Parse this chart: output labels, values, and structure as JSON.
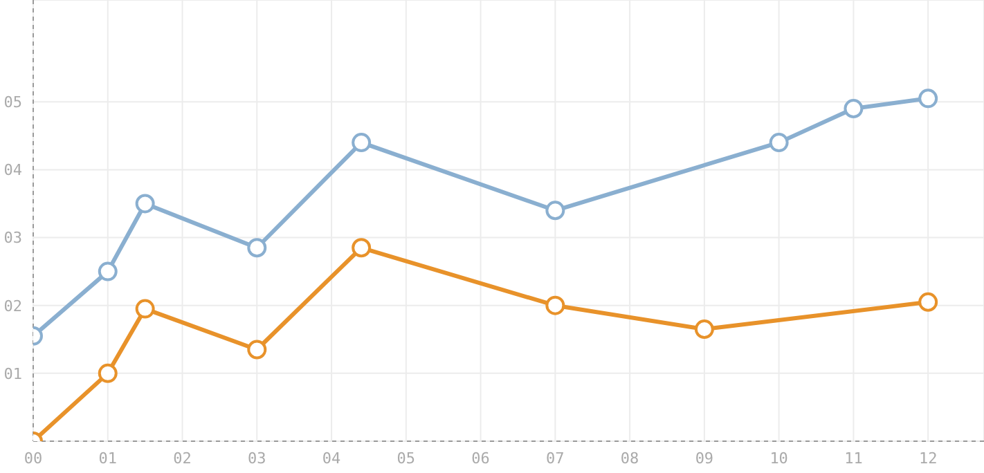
{
  "chart_data": {
    "type": "line",
    "xlim": [
      0,
      12.75
    ],
    "xticks": [
      {
        "value": 0,
        "label": "00"
      },
      {
        "value": 1,
        "label": "01"
      },
      {
        "value": 2,
        "label": "02"
      },
      {
        "value": 3,
        "label": "03"
      },
      {
        "value": 4,
        "label": "04"
      },
      {
        "value": 5,
        "label": "05"
      },
      {
        "value": 6,
        "label": "06"
      },
      {
        "value": 7,
        "label": "07"
      },
      {
        "value": 8,
        "label": "08"
      },
      {
        "value": 9,
        "label": "09"
      },
      {
        "value": 10,
        "label": "10"
      },
      {
        "value": 11,
        "label": "11"
      },
      {
        "value": 12,
        "label": "12"
      }
    ],
    "ylim": [
      0,
      6.5
    ],
    "yticks": [
      {
        "value": 0,
        "label": null
      },
      {
        "value": 1,
        "label": "01"
      },
      {
        "value": 2,
        "label": "02"
      },
      {
        "value": 3,
        "label": "03"
      },
      {
        "value": 4,
        "label": "04"
      },
      {
        "value": 5,
        "label": "05"
      }
    ],
    "grid": true,
    "marker": "circle",
    "line_style": "solid",
    "series": [
      {
        "color": "#8aafd0",
        "x": [
          0,
          1,
          1.5,
          3,
          4.4,
          7,
          10,
          11,
          12
        ],
        "values": [
          1.55,
          2.5,
          3.5,
          2.85,
          4.4,
          3.4,
          4.4,
          4.9,
          5.05
        ]
      },
      {
        "color": "#e8922a",
        "x": [
          0,
          1,
          1.5,
          3,
          4.4,
          7,
          9,
          12
        ],
        "values": [
          0,
          1,
          1.95,
          1.35,
          2.85,
          2.0,
          1.65,
          2.05
        ]
      }
    ]
  }
}
